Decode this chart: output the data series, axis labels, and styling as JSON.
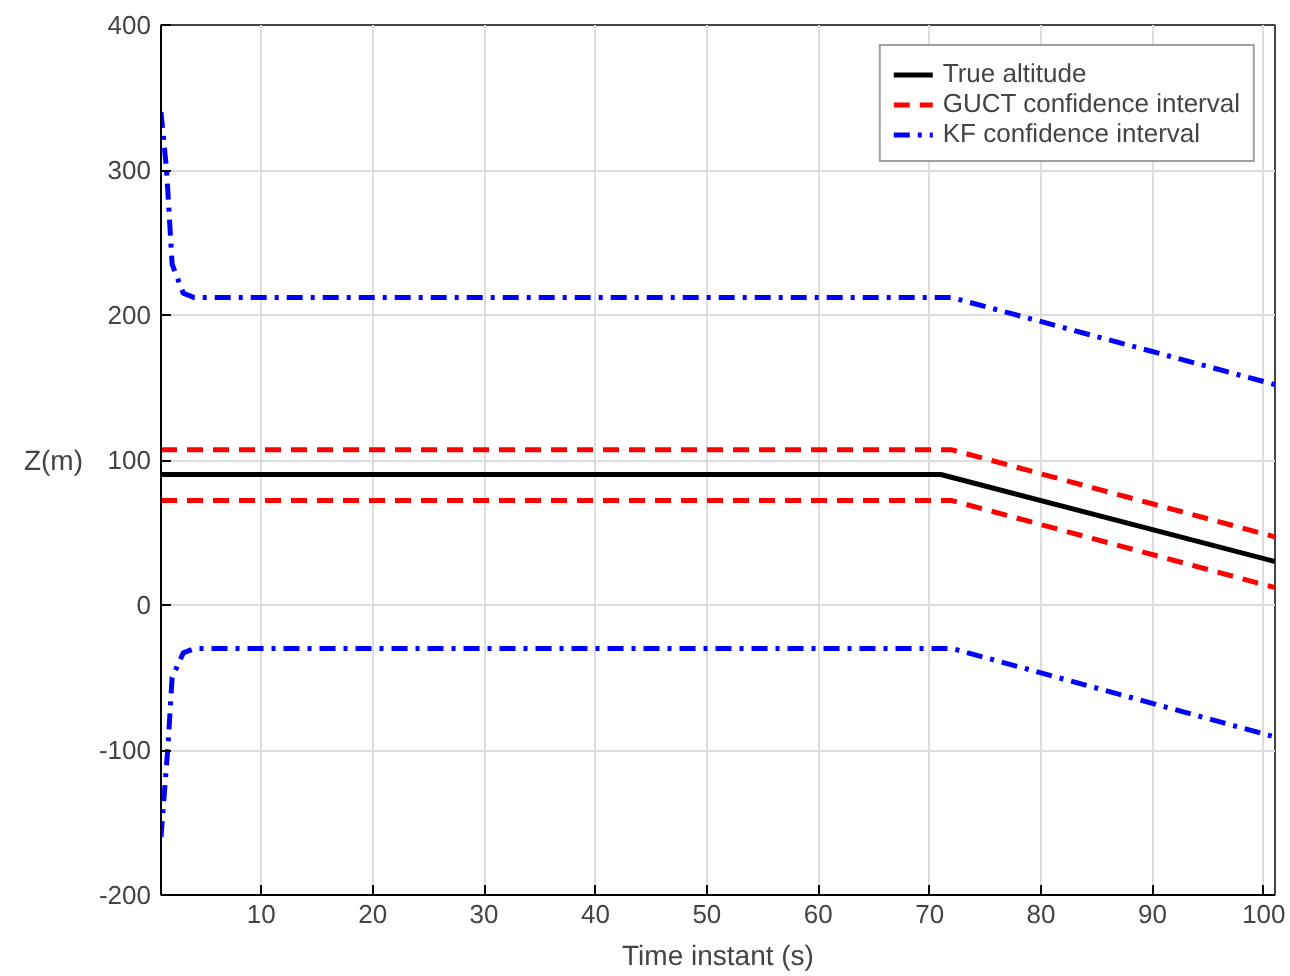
{
  "chart_data": {
    "type": "line",
    "xlabel": "Time instant (s)",
    "ylabel": "Z(m)",
    "xlim": [
      1,
      101
    ],
    "ylim": [
      -200,
      400
    ],
    "xticks": [
      10,
      20,
      30,
      40,
      50,
      60,
      70,
      80,
      90,
      100
    ],
    "yticks": [
      -200,
      -100,
      0,
      100,
      200,
      300,
      400
    ],
    "grid": true,
    "legend": "top right",
    "series": [
      {
        "name": "True altitude",
        "color": "#000000",
        "line_style": "solid",
        "x": [
          1,
          71,
          101
        ],
        "values": [
          90,
          90,
          30
        ]
      },
      {
        "name": "GUCT confidence interval",
        "color": "#ff0000",
        "line_style": "dashed",
        "x": [
          1,
          72,
          101
        ],
        "values": [
          107,
          107,
          47
        ]
      },
      {
        "color": "#ff0000",
        "line_style": "dashed",
        "x": [
          1,
          72,
          101
        ],
        "values": [
          72,
          72,
          12
        ]
      },
      {
        "name": "KF confidence interval",
        "color": "#0000ff",
        "line_style": "dashdot",
        "x": [
          1,
          1.5,
          2,
          3,
          4,
          72,
          101
        ],
        "values": [
          340,
          300,
          235,
          215,
          212,
          212,
          152
        ]
      },
      {
        "color": "#0000ff",
        "line_style": "dashdot",
        "x": [
          1,
          1.6,
          2,
          3,
          4,
          72,
          101
        ],
        "values": [
          -160,
          -100,
          -50,
          -33,
          -30,
          -30,
          -91
        ]
      }
    ]
  }
}
